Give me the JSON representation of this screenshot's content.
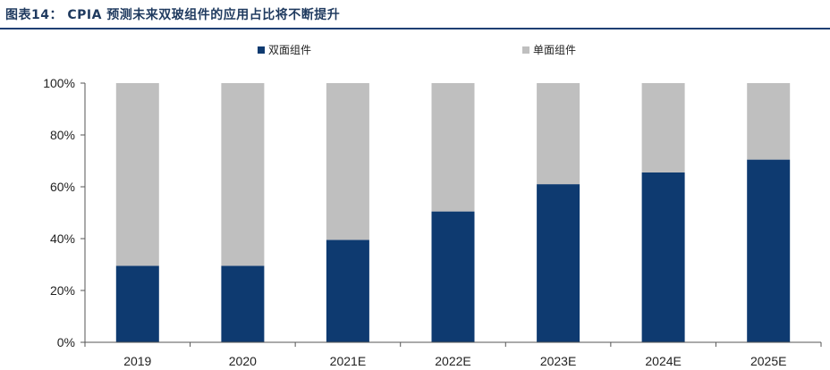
{
  "figure": {
    "title": "图表14：  CPIA 预测未来双玻组件的应用占比将不断提升"
  },
  "colors": {
    "bifacial": "#0e3a70",
    "monofacial": "#bfbfbf",
    "title_rule": "#1f3f73",
    "axis": "#555555"
  },
  "chart_data": {
    "type": "bar",
    "stacked": true,
    "categories": [
      "2019",
      "2020",
      "2021E",
      "2022E",
      "2023E",
      "2024E",
      "2025E"
    ],
    "series": [
      {
        "name": "双面组件",
        "values": [
          29.5,
          29.5,
          39.5,
          50.5,
          61,
          65.5,
          70.5
        ],
        "color": "#0e3a70"
      },
      {
        "name": "单面组件",
        "values": [
          70.5,
          70.5,
          60.5,
          49.5,
          39,
          34.5,
          29.5
        ],
        "color": "#bfbfbf"
      }
    ],
    "ylim": [
      0,
      100
    ],
    "yticks": [
      "0%",
      "20%",
      "40%",
      "60%",
      "80%",
      "100%"
    ],
    "ytick_values": [
      0,
      20,
      40,
      60,
      80,
      100
    ],
    "legend_position": "top",
    "grid": false
  }
}
